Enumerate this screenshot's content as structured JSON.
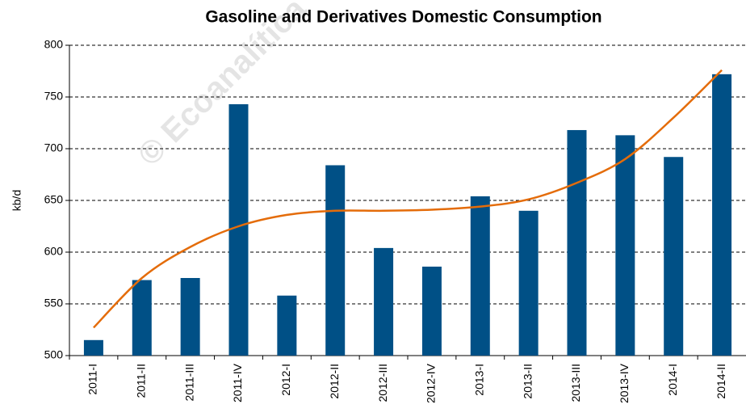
{
  "chart_data": {
    "type": "bar",
    "title": "Gasoline and Derivatives Domestic Consumption",
    "watermark": "© Ecoanalítica",
    "y_label": "kb/d",
    "categories": [
      "2011-I",
      "2011-II",
      "2011-III",
      "2011-IV",
      "2012-I",
      "2012-II",
      "2012-III",
      "2012-IV",
      "2013-I",
      "2013-II",
      "2013-III",
      "2013-IV",
      "2014-I",
      "2014-II"
    ],
    "values": [
      515,
      573,
      575,
      743,
      558,
      684,
      604,
      586,
      654,
      640,
      718,
      713,
      692,
      772
    ],
    "color": "#005086",
    "trend": {
      "color": "#e46c0a",
      "values": [
        527,
        575,
        605,
        625,
        636,
        640,
        640,
        641,
        644,
        651,
        667,
        690,
        730,
        776
      ]
    },
    "ylim": [
      500,
      800
    ],
    "yticks": [
      500,
      550,
      600,
      650,
      700,
      750,
      800
    ],
    "grid": true
  }
}
